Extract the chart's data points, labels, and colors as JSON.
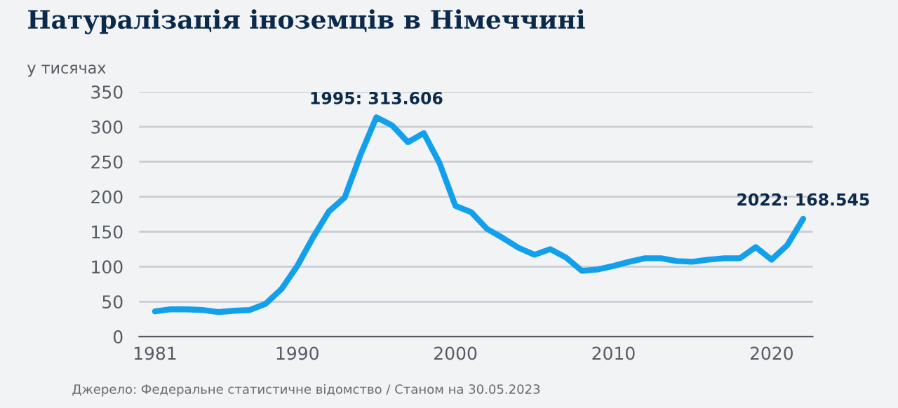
{
  "chart_data": {
    "type": "line",
    "title": "Натуралізація іноземців в Німеччині",
    "ylabel": "у тисячах",
    "x": [
      1981,
      1982,
      1983,
      1984,
      1985,
      1986,
      1987,
      1988,
      1989,
      1990,
      1991,
      1992,
      1993,
      1994,
      1995,
      1996,
      1997,
      1998,
      1999,
      2000,
      2001,
      2002,
      2003,
      2004,
      2005,
      2006,
      2007,
      2008,
      2009,
      2010,
      2011,
      2012,
      2013,
      2014,
      2015,
      2016,
      2017,
      2018,
      2019,
      2020,
      2021,
      2022
    ],
    "series": [
      {
        "color": "#12a0ec",
        "values": [
          36,
          39,
          39,
          38,
          35,
          37,
          38,
          47,
          68,
          101,
          142,
          179,
          199,
          260,
          313.606,
          302,
          278,
          291,
          248,
          187,
          178,
          154,
          141,
          127,
          117,
          125,
          113,
          94,
          96,
          101,
          107,
          112,
          112,
          108,
          107,
          110,
          112,
          112,
          128,
          110,
          131,
          168.545
        ]
      }
    ],
    "xlim": [
      1980,
      2022.6
    ],
    "xticks": [
      1981,
      1990,
      2000,
      2010,
      2020
    ],
    "ylim": [
      0,
      350
    ],
    "yticks": [
      0,
      50,
      100,
      150,
      200,
      250,
      300,
      350
    ],
    "grid": "y",
    "marker": "none",
    "line_style": "solid",
    "annotations": [
      {
        "text": "1995: 313.606",
        "x": 1995,
        "y": 313.606
      },
      {
        "text": "2022: 168.545",
        "x": 2022,
        "y": 168.545
      },
      "Джерело: Федеральне статистичне відомство / Станом на 30.05.2023"
    ]
  }
}
